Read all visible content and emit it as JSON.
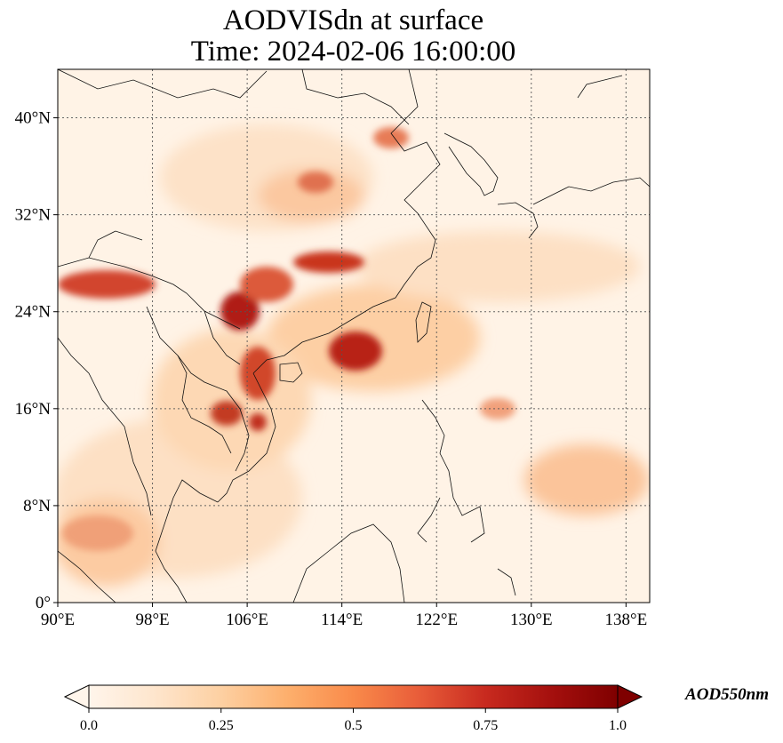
{
  "title": {
    "line1": "AODVISdn at surface",
    "line2": "Time: 2024-02-06 16:00:00"
  },
  "map": {
    "lon_range": [
      90,
      140
    ],
    "lat_range": [
      0,
      44
    ],
    "x_ticks": [
      {
        "value": 90,
        "label": "90°E"
      },
      {
        "value": 98,
        "label": "98°E"
      },
      {
        "value": 106,
        "label": "106°E"
      },
      {
        "value": 114,
        "label": "114°E"
      },
      {
        "value": 122,
        "label": "122°E"
      },
      {
        "value": 130,
        "label": "130°E"
      },
      {
        "value": 138,
        "label": "138°E"
      }
    ],
    "y_ticks": [
      {
        "value": 0,
        "label": "0°"
      },
      {
        "value": 8,
        "label": "8°N"
      },
      {
        "value": 16,
        "label": "16°N"
      },
      {
        "value": 24,
        "label": "24°N"
      },
      {
        "value": 32,
        "label": "32°N"
      },
      {
        "value": 40,
        "label": "40°N"
      }
    ],
    "gridlines": true
  },
  "colorbar": {
    "title": "AOD550nm",
    "range": [
      0,
      1
    ],
    "ticks": [
      {
        "value": 0,
        "label": "0.0"
      },
      {
        "value": 0.25,
        "label": "0.25"
      },
      {
        "value": 0.5,
        "label": "0.5"
      },
      {
        "value": 0.75,
        "label": "0.75"
      },
      {
        "value": 1.0,
        "label": "1.0"
      }
    ],
    "colors": [
      "#fff5eb",
      "#fee6ce",
      "#fdd0a2",
      "#fdae6b",
      "#fd8d3c",
      "#f16913",
      "#d94801",
      "#a63603",
      "#7f2704"
    ]
  }
}
